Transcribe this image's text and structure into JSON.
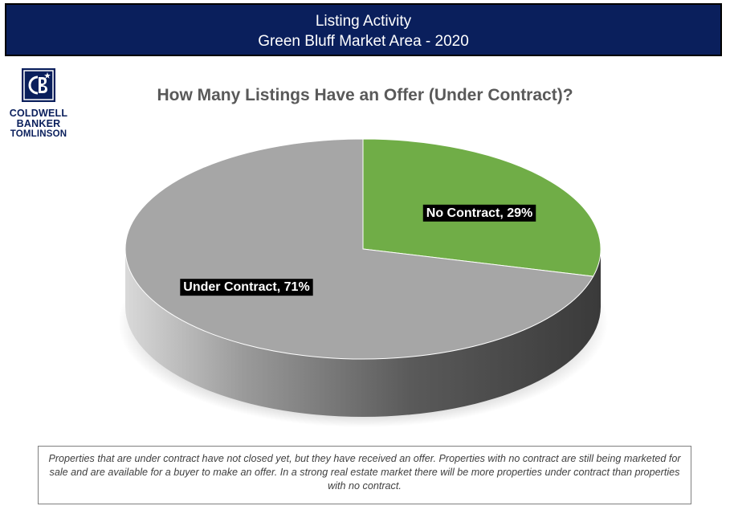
{
  "header": {
    "line1": "Listing Activity",
    "line2": "Green Bluff Market Area - 2020"
  },
  "logo": {
    "line1": "COLDWELL",
    "line2": "BANKER",
    "line3": "TOMLINSON",
    "icon": "coldwell-banker-cb-logo-icon"
  },
  "chart_data": {
    "type": "pie",
    "title": "How Many Listings Have an Offer (Under Contract)?",
    "slices": [
      {
        "label": "No Contract",
        "value": 29,
        "color": "#70ad47",
        "data_label": "No Contract, 29%"
      },
      {
        "label": "Under Contract",
        "value": 71,
        "color": "#a6a6a6",
        "data_label": "Under Contract, 71%"
      }
    ],
    "three_d": true
  },
  "caption": "Properties that are under contract have not closed yet, but they have received an offer.  Properties with no contract are still being marketed for sale and are available for a buyer to make an offer.  In a strong real estate market there will be more properties under contract than properties with no contract."
}
